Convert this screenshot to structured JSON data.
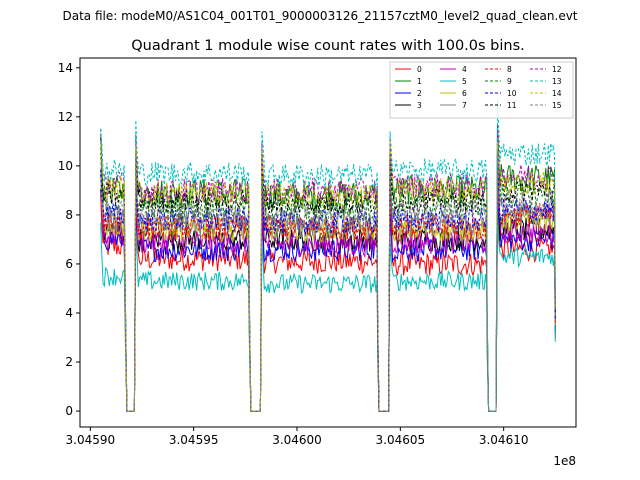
{
  "chart_data": {
    "type": "line",
    "suptitle": "Data file: modeM0/AS1C04_001T01_9000003126_21157cztM0_level2_quad_clean.evt",
    "title": "Quadrant 1 module wise count rates with 100.0s bins.",
    "xlabel": "",
    "ylabel": "",
    "x_offset_label": "1e8",
    "xlim": [
      3.045895,
      3.046135
    ],
    "ylim": [
      -0.65,
      14.4
    ],
    "x_ticks": [
      3.0459,
      3.04595,
      3.046,
      3.04605,
      3.0461
    ],
    "x_tick_labels": [
      "3.04590",
      "3.04595",
      "3.04600",
      "3.04605",
      "3.04610"
    ],
    "y_ticks": [
      0,
      2,
      4,
      6,
      8,
      10,
      12,
      14
    ],
    "y_tick_labels": [
      "0",
      "2",
      "4",
      "6",
      "8",
      "10",
      "12",
      "14"
    ],
    "segments": [
      {
        "start": 3.045905,
        "end": 3.045917
      },
      {
        "start": 3.045922,
        "end": 3.045977
      },
      {
        "start": 3.045983,
        "end": 3.046039
      },
      {
        "start": 3.046045,
        "end": 3.046092
      },
      {
        "start": 3.046097,
        "end": 3.046125
      }
    ],
    "series": [
      {
        "name": "0",
        "color": "#ff0000",
        "dash": "solid",
        "base": [
          6.7,
          6.2,
          6.1,
          6.0,
          6.6
        ],
        "noise": 0.5
      },
      {
        "name": "1",
        "color": "#008000",
        "dash": "solid",
        "base": [
          9.0,
          8.9,
          8.8,
          9.0,
          9.5
        ],
        "noise": 0.6
      },
      {
        "name": "2",
        "color": "#0000ff",
        "dash": "solid",
        "base": [
          7.0,
          6.6,
          6.6,
          6.6,
          7.0
        ],
        "noise": 0.5
      },
      {
        "name": "3",
        "color": "#000000",
        "dash": "solid",
        "base": [
          7.3,
          7.0,
          7.0,
          7.0,
          7.4
        ],
        "noise": 0.5
      },
      {
        "name": "4",
        "color": "#bf00bf",
        "dash": "solid",
        "base": [
          7.2,
          6.9,
          6.8,
          6.9,
          7.3
        ],
        "noise": 0.5
      },
      {
        "name": "5",
        "color": "#00bfbf",
        "dash": "solid",
        "base": [
          5.5,
          5.3,
          5.2,
          5.3,
          6.3
        ],
        "noise": 0.4
      },
      {
        "name": "6",
        "color": "#bfbf00",
        "dash": "solid",
        "base": [
          7.6,
          7.4,
          7.4,
          7.4,
          7.8
        ],
        "noise": 0.5
      },
      {
        "name": "7",
        "color": "#808080",
        "dash": "solid",
        "base": [
          7.8,
          7.6,
          7.5,
          7.6,
          8.0
        ],
        "noise": 0.5
      },
      {
        "name": "8",
        "color": "#ff0000",
        "dash": "dashed",
        "base": [
          7.8,
          7.5,
          7.5,
          7.5,
          8.0
        ],
        "noise": 0.5
      },
      {
        "name": "9",
        "color": "#008000",
        "dash": "dashed",
        "base": [
          8.5,
          8.3,
          8.2,
          8.4,
          8.8
        ],
        "noise": 0.5
      },
      {
        "name": "10",
        "color": "#0000ff",
        "dash": "dashed",
        "base": [
          8.0,
          7.8,
          7.7,
          7.8,
          8.2
        ],
        "noise": 0.5
      },
      {
        "name": "11",
        "color": "#000000",
        "dash": "dashed",
        "base": [
          8.8,
          8.6,
          8.5,
          8.6,
          9.0
        ],
        "noise": 0.5
      },
      {
        "name": "12",
        "color": "#bf00bf",
        "dash": "dashed",
        "base": [
          9.3,
          9.0,
          9.0,
          9.2,
          9.6
        ],
        "noise": 0.5
      },
      {
        "name": "13",
        "color": "#00bfbf",
        "dash": "dashed",
        "base": [
          9.8,
          9.7,
          9.6,
          9.8,
          10.5
        ],
        "noise": 0.5
      },
      {
        "name": "14",
        "color": "#bfbf00",
        "dash": "dashed",
        "base": [
          9.1,
          8.9,
          8.8,
          9.0,
          9.3
        ],
        "noise": 0.5
      },
      {
        "name": "15",
        "color": "#808080",
        "dash": "dashed",
        "base": [
          8.2,
          8.0,
          7.9,
          8.1,
          8.5
        ],
        "noise": 0.5
      }
    ]
  }
}
